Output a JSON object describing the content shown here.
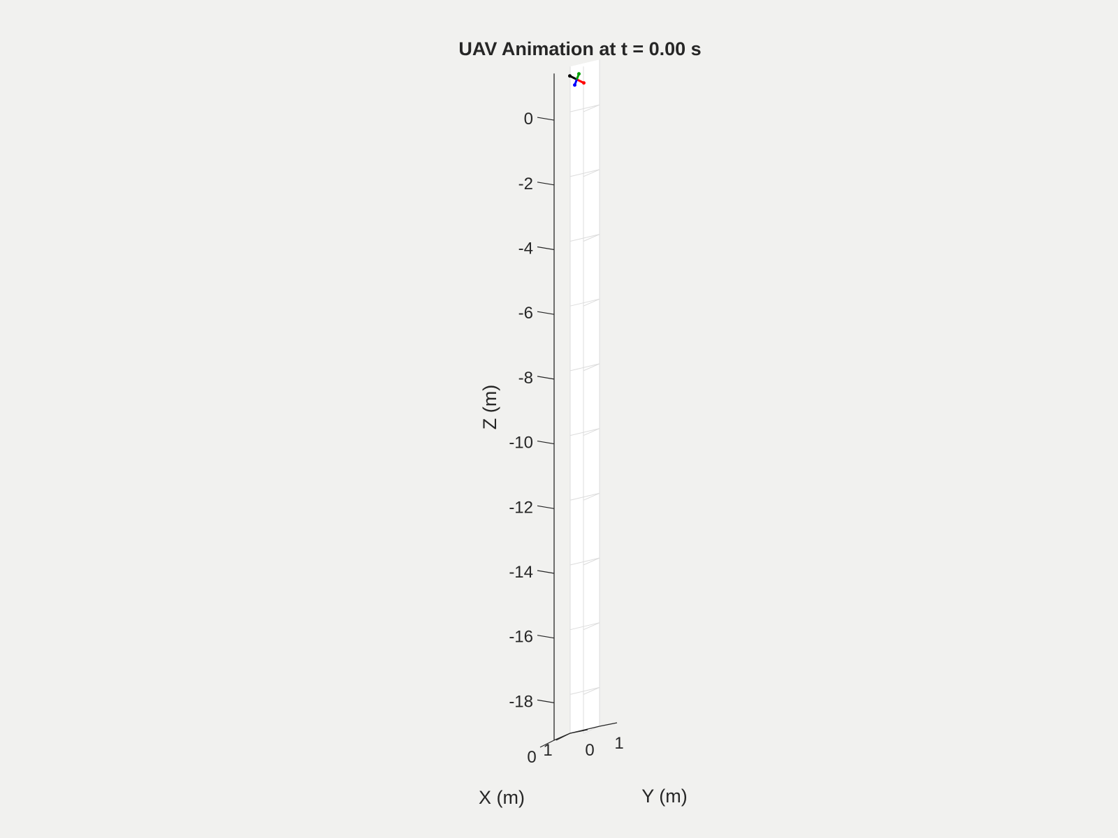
{
  "chart_data": {
    "type": "scatter",
    "title": "UAV Animation at t = 0.00 s",
    "xlabel": "X (m)",
    "ylabel": "Y (m)",
    "zlabel": "Z (m)",
    "xlim": [
      0,
      1
    ],
    "ylim": [
      0,
      1
    ],
    "zlim": [
      -19.2,
      1.4
    ],
    "xticks": [
      0,
      1
    ],
    "yticks": [
      0,
      1
    ],
    "zticks": [
      0,
      -2,
      -4,
      -6,
      -8,
      -10,
      -12,
      -14,
      -16,
      -18
    ],
    "grid": true,
    "view": "3d",
    "uav": {
      "position": {
        "x": 0.5,
        "y": 0.5,
        "z": 1.0
      },
      "arm_colors": [
        "#000000",
        "#ff0000",
        "#00a000",
        "#0000ff"
      ]
    }
  },
  "colors": {
    "background": "#f1f1ef",
    "axes": "#262626",
    "grid": "#dcdcdc"
  }
}
